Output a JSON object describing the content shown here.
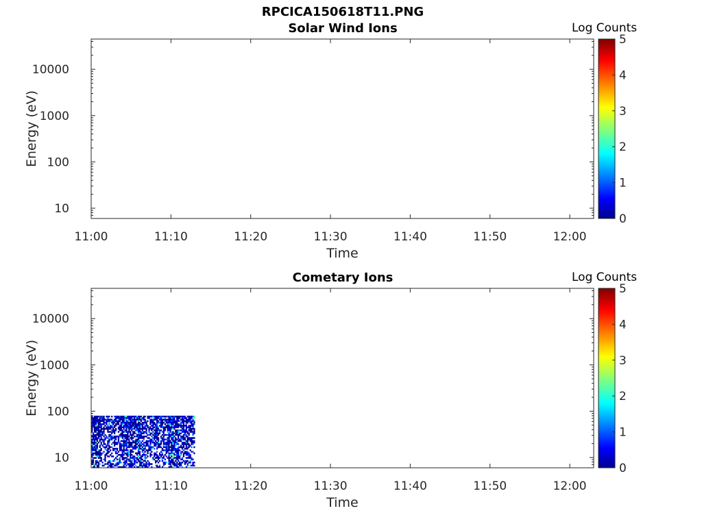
{
  "figure_title": "RPCICA150618T11.PNG",
  "colorbar": {
    "label": "Log Counts",
    "ticks": [
      "0",
      "1",
      "2",
      "3",
      "4",
      "5"
    ],
    "colors": [
      "#00008f",
      "#0000ff",
      "#00ffff",
      "#ffff00",
      "#ff0000",
      "#800000"
    ]
  },
  "chart_data": [
    {
      "type": "heatmap",
      "title": "Solar Wind Ions",
      "xlabel": "Time",
      "ylabel": "Energy (eV)",
      "x_ticks": [
        "11:00",
        "11:10",
        "11:20",
        "11:30",
        "11:40",
        "11:50",
        "12:00"
      ],
      "x_range_minutes": [
        0,
        63
      ],
      "y_scale": "log",
      "y_ticks": [
        "10",
        "100",
        "1000",
        "10000"
      ],
      "ylim": [
        6,
        45000
      ],
      "clim": [
        0,
        5
      ],
      "data": []
    },
    {
      "type": "heatmap",
      "title": "Cometary Ions",
      "xlabel": "Time",
      "ylabel": "Energy (eV)",
      "x_ticks": [
        "11:00",
        "11:10",
        "11:20",
        "11:30",
        "11:40",
        "11:50",
        "12:00"
      ],
      "x_range_minutes": [
        0,
        63
      ],
      "y_scale": "log",
      "y_ticks": [
        "10",
        "100",
        "1000",
        "10000"
      ],
      "ylim": [
        6,
        45000
      ],
      "clim": [
        0,
        5
      ],
      "data_extent": {
        "time": [
          "11:00",
          "11:13"
        ],
        "energy_eV": [
          8,
          80
        ]
      },
      "data_description_levels": [
        0.4,
        0.9,
        1.3,
        1.8,
        2.5
      ]
    }
  ]
}
